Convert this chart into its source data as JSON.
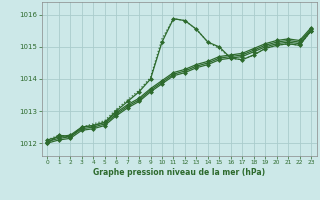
{
  "bg_color": "#cce8e8",
  "grid_color": "#aacccc",
  "line_color": "#2d6a2d",
  "xlabel": "Graphe pression niveau de la mer (hPa)",
  "xlim": [
    -0.5,
    23.5
  ],
  "ylim": [
    1011.6,
    1016.4
  ],
  "yticks": [
    1012,
    1013,
    1014,
    1015,
    1016
  ],
  "xticks": [
    0,
    1,
    2,
    3,
    4,
    5,
    6,
    7,
    8,
    9,
    10,
    11,
    12,
    13,
    14,
    15,
    16,
    17,
    18,
    19,
    20,
    21,
    22,
    23
  ],
  "series": [
    {
      "x": [
        0,
        1,
        2,
        3,
        4,
        5,
        6,
        7,
        8,
        9,
        10,
        11,
        12,
        13,
        14,
        15,
        16,
        17,
        18,
        19,
        20,
        21,
        22,
        23
      ],
      "y": [
        1012.1,
        1012.25,
        1012.2,
        1012.5,
        1012.6,
        1012.7,
        1013.05,
        1013.35,
        1013.65,
        1014.05,
        1015.25,
        1015.88,
        1015.82,
        1015.55,
        1015.15,
        1014.95,
        1014.65,
        1014.6,
        1014.75,
        1014.95,
        1015.05,
        1015.1,
        1015.05,
        1015.5
      ],
      "linestyle": "dotted",
      "linewidth": 0.9,
      "marker": null
    },
    {
      "x": [
        0,
        1,
        2,
        3,
        4,
        5,
        6,
        7,
        8,
        9,
        10,
        11,
        12,
        13,
        14,
        15,
        16,
        17,
        18,
        19,
        20,
        21,
        22,
        23
      ],
      "y": [
        1012.0,
        1012.1,
        1012.15,
        1012.4,
        1012.45,
        1012.55,
        1012.85,
        1013.1,
        1013.3,
        1013.6,
        1013.85,
        1014.1,
        1014.2,
        1014.35,
        1014.45,
        1014.6,
        1014.65,
        1014.7,
        1014.85,
        1015.0,
        1015.1,
        1015.15,
        1015.1,
        1015.5
      ],
      "linestyle": "solid",
      "linewidth": 0.9,
      "marker": "D",
      "markersize": 2.0
    },
    {
      "x": [
        0,
        1,
        2,
        3,
        4,
        5,
        6,
        7,
        8,
        9,
        10,
        11,
        12,
        13,
        14,
        15,
        16,
        17,
        18,
        19,
        20,
        21,
        22,
        23
      ],
      "y": [
        1012.05,
        1012.15,
        1012.2,
        1012.45,
        1012.5,
        1012.6,
        1012.9,
        1013.15,
        1013.35,
        1013.65,
        1013.9,
        1014.15,
        1014.25,
        1014.4,
        1014.5,
        1014.65,
        1014.7,
        1014.75,
        1014.9,
        1015.05,
        1015.15,
        1015.2,
        1015.15,
        1015.55
      ],
      "linestyle": "solid",
      "linewidth": 0.9,
      "marker": "D",
      "markersize": 2.0
    },
    {
      "x": [
        0,
        1,
        2,
        3,
        4,
        5,
        6,
        7,
        8,
        9,
        10,
        11,
        12,
        13,
        14,
        15,
        16,
        17,
        18,
        19,
        20,
        21,
        22,
        23
      ],
      "y": [
        1012.1,
        1012.2,
        1012.25,
        1012.5,
        1012.55,
        1012.65,
        1012.95,
        1013.2,
        1013.4,
        1013.7,
        1013.95,
        1014.2,
        1014.3,
        1014.45,
        1014.55,
        1014.7,
        1014.75,
        1014.8,
        1014.95,
        1015.1,
        1015.2,
        1015.25,
        1015.2,
        1015.6
      ],
      "linestyle": "solid",
      "linewidth": 0.9,
      "marker": "D",
      "markersize": 2.0
    },
    {
      "x": [
        0,
        1,
        2,
        3,
        4,
        5,
        6,
        7,
        8,
        9,
        10,
        11,
        12,
        13,
        14,
        15,
        16,
        17,
        18,
        19,
        20,
        21,
        22,
        23
      ],
      "y": [
        1012.0,
        1012.25,
        1012.2,
        1012.5,
        1012.55,
        1012.65,
        1013.0,
        1013.3,
        1013.6,
        1014.0,
        1015.15,
        1015.88,
        1015.82,
        1015.55,
        1015.15,
        1015.0,
        1014.65,
        1014.6,
        1014.75,
        1014.95,
        1015.05,
        1015.1,
        1015.05,
        1015.5
      ],
      "linestyle": "solid",
      "linewidth": 0.9,
      "marker": "D",
      "markersize": 2.0
    }
  ]
}
